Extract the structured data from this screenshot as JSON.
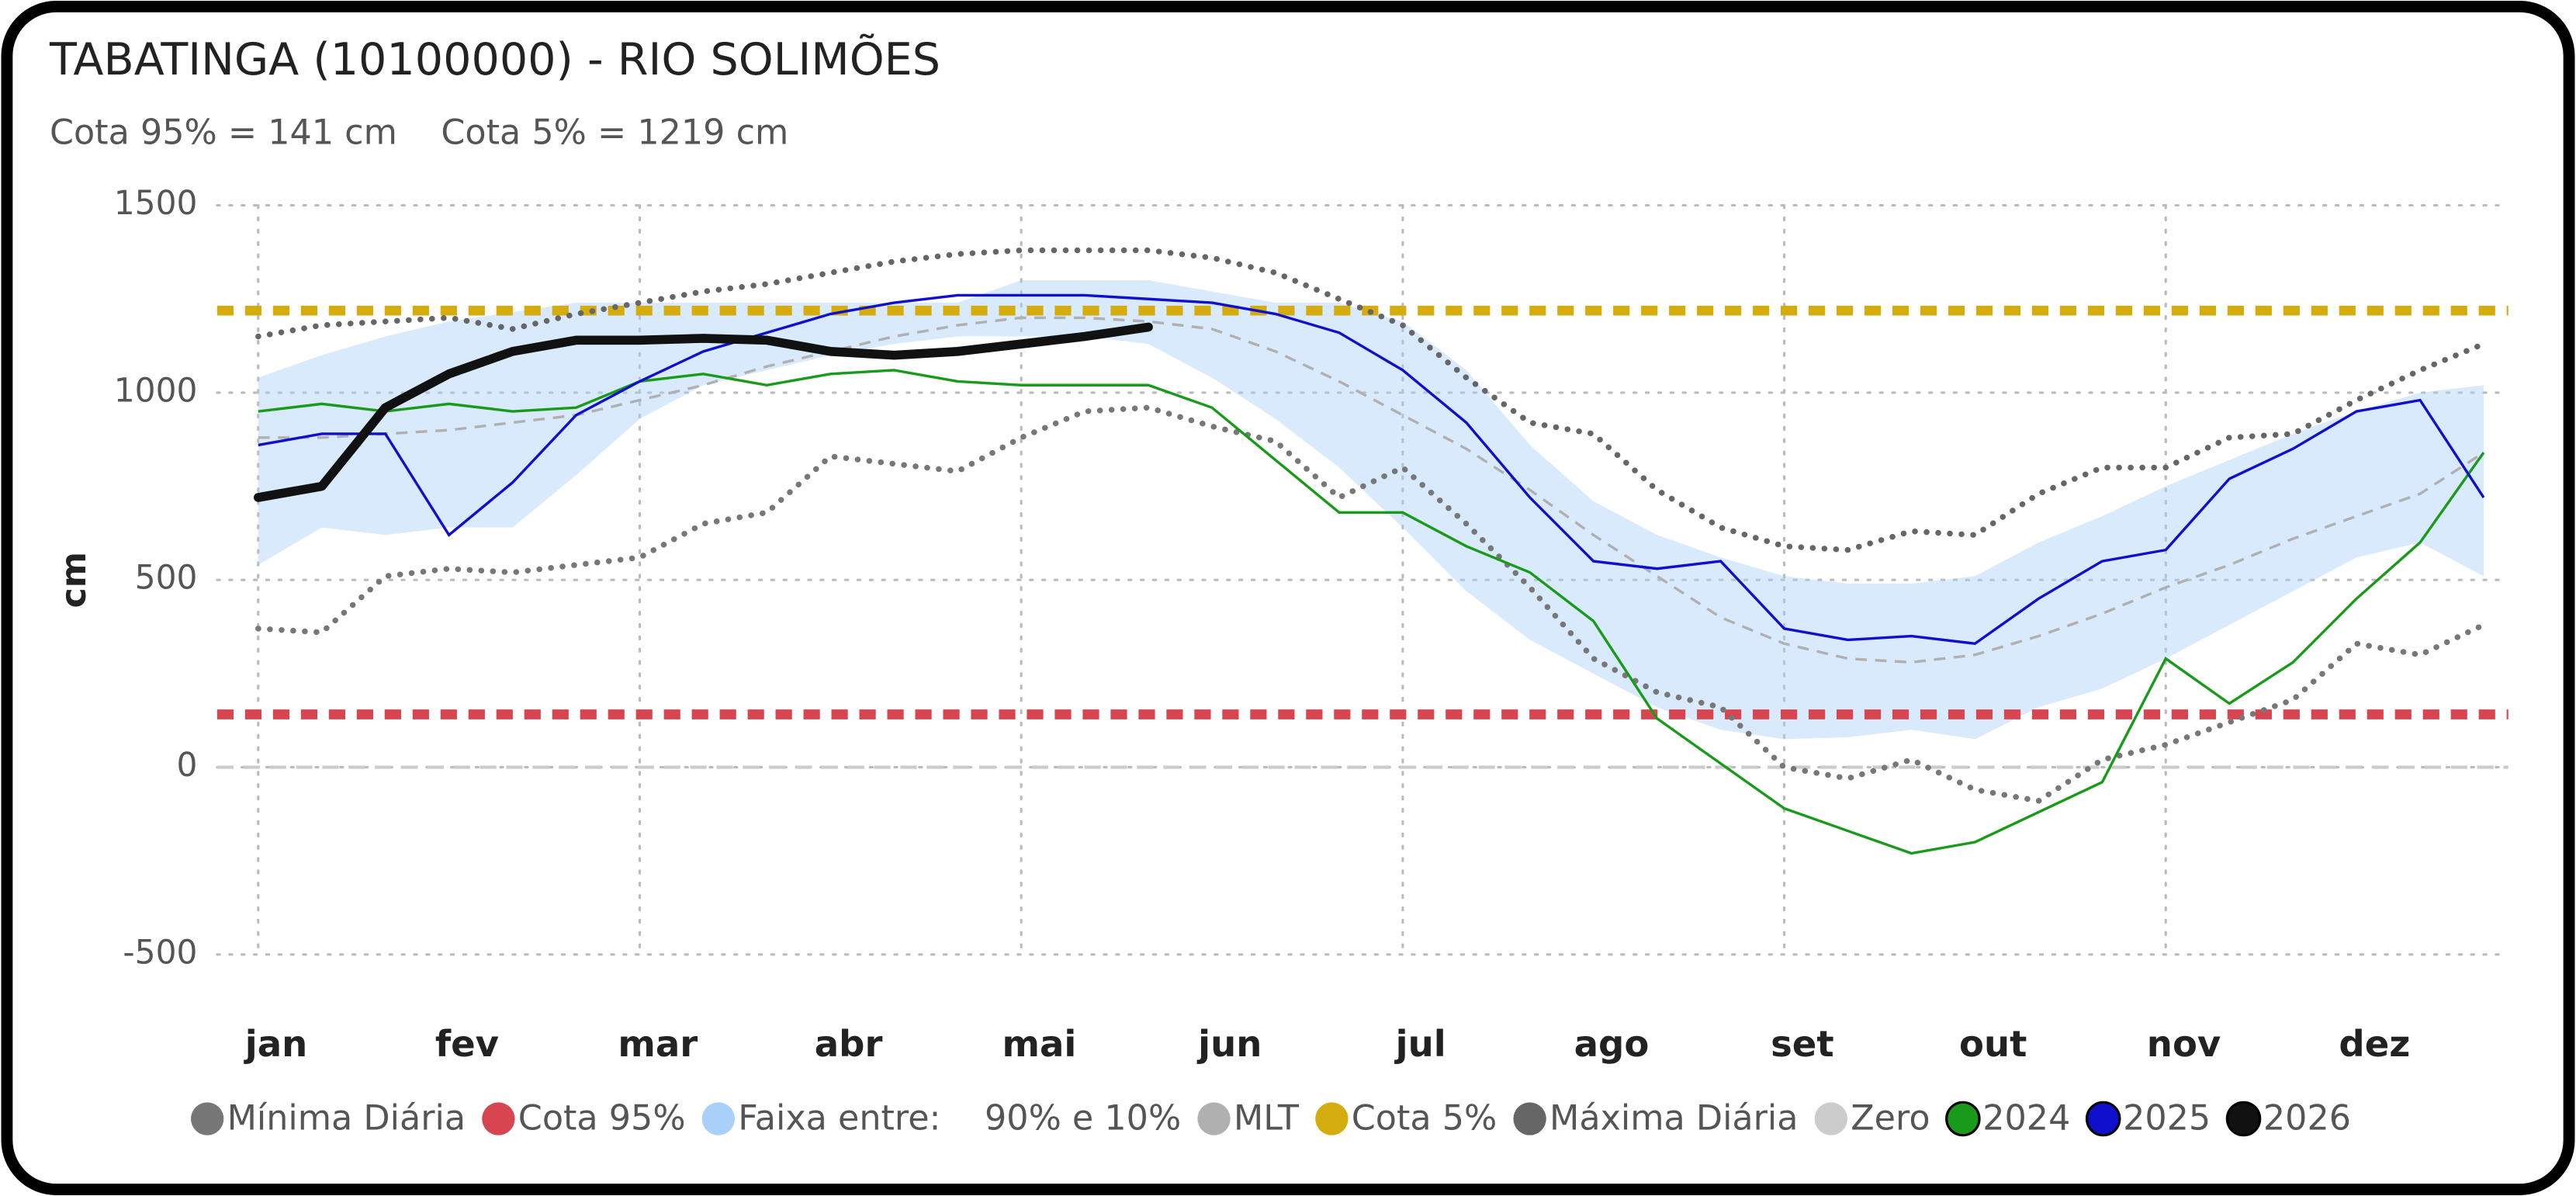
{
  "chart_data": {
    "type": "line",
    "title": "TABATINGA (10100000) - RIO SOLIMÕES",
    "subtitle": "Cota 95% = 141 cm    Cota 5% = 1219 cm",
    "y_label": "cm",
    "ylim": [
      -500,
      1500
    ],
    "yticks": [
      -500,
      0,
      500,
      1000,
      1500
    ],
    "grid": true,
    "legend": "bottom",
    "categories": [
      "jan",
      null,
      null,
      "fev",
      null,
      null,
      "mar",
      null,
      null,
      "abr",
      null,
      null,
      "mai",
      null,
      null,
      "jun",
      null,
      null,
      "jul",
      null,
      null,
      "ago",
      null,
      null,
      "set",
      null,
      null,
      "out",
      null,
      null,
      "nov",
      null,
      null,
      "dez",
      null,
      null
    ],
    "series": [
      {
        "name": "Mínima Diária",
        "color": "#777777",
        "kind": "line",
        "style": "dotted",
        "values": [
          370,
          360,
          510,
          530,
          520,
          540,
          560,
          650,
          680,
          830,
          810,
          790,
          880,
          950,
          960,
          910,
          870,
          720,
          800,
          650,
          480,
          290,
          200,
          160,
          0,
          -30,
          20,
          -60,
          -90,
          20,
          60,
          120,
          180,
          330,
          300,
          380
        ]
      },
      {
        "name": "Cota 95%",
        "color": "#d64550",
        "kind": "hline",
        "value": 141
      },
      {
        "name": "Faixa entre:    90% e 10%",
        "color": "#a8d0f8",
        "kind": "band",
        "upper": [
          1040,
          1100,
          1150,
          1190,
          1215,
          1240,
          1240,
          1240,
          1240,
          1240,
          1240,
          1240,
          1300,
          1300,
          1300,
          1270,
          1240,
          1240,
          1190,
          1060,
          860,
          710,
          620,
          560,
          510,
          490,
          490,
          510,
          600,
          670,
          750,
          820,
          890,
          950,
          1000,
          1020
        ],
        "lower": [
          540,
          640,
          620,
          640,
          640,
          780,
          930,
          1020,
          1060,
          1100,
          1130,
          1150,
          1150,
          1150,
          1130,
          1040,
          930,
          800,
          640,
          470,
          340,
          250,
          160,
          100,
          75,
          80,
          100,
          75,
          160,
          210,
          290,
          380,
          470,
          560,
          600,
          510
        ]
      },
      {
        "name": "MLT",
        "color": "#b0b0b0",
        "kind": "line",
        "style": "dashed",
        "values": [
          880,
          880,
          890,
          900,
          920,
          940,
          980,
          1020,
          1070,
          1110,
          1150,
          1180,
          1200,
          1200,
          1190,
          1170,
          1110,
          1030,
          940,
          850,
          740,
          620,
          510,
          400,
          330,
          290,
          280,
          300,
          350,
          410,
          480,
          540,
          610,
          670,
          730,
          840
        ]
      },
      {
        "name": "Cota 5%",
        "color": "#d4ac0d",
        "kind": "hline",
        "value": 1219
      },
      {
        "name": "Máxima Diária",
        "color": "#666666",
        "kind": "line",
        "style": "dotted",
        "values": [
          1150,
          1180,
          1190,
          1200,
          1170,
          1210,
          1240,
          1270,
          1290,
          1320,
          1350,
          1370,
          1380,
          1380,
          1380,
          1360,
          1320,
          1250,
          1180,
          1040,
          920,
          890,
          740,
          640,
          590,
          580,
          630,
          620,
          730,
          800,
          800,
          880,
          890,
          980,
          1060,
          1130
        ]
      },
      {
        "name": "Zero",
        "color": "#cccccc",
        "kind": "hline",
        "value": 0
      },
      {
        "name": "2024",
        "color": "#1a9a1a",
        "kind": "line",
        "style": "solid",
        "values": [
          950,
          970,
          950,
          970,
          950,
          960,
          1030,
          1050,
          1020,
          1050,
          1060,
          1030,
          1020,
          1020,
          1020,
          960,
          820,
          680,
          680,
          590,
          520,
          390,
          130,
          10,
          -110,
          -170,
          -230,
          -200,
          -120,
          -40,
          290,
          170,
          280,
          450,
          600,
          840
        ]
      },
      {
        "name": "2025",
        "color": "#1010cc",
        "kind": "line",
        "style": "solid",
        "values": [
          860,
          890,
          890,
          620,
          760,
          940,
          1030,
          1110,
          1160,
          1210,
          1240,
          1260,
          1260,
          1260,
          1250,
          1240,
          1210,
          1160,
          1060,
          920,
          720,
          550,
          530,
          550,
          370,
          340,
          350,
          330,
          450,
          550,
          580,
          770,
          850,
          950,
          980,
          720
        ]
      },
      {
        "name": "2026",
        "color": "#111111",
        "kind": "line",
        "style": "thick",
        "values": [
          720,
          750,
          960,
          1050,
          1110,
          1140,
          1140,
          1145,
          1140,
          1110,
          1100,
          1110,
          1130,
          1150,
          1175,
          null,
          null,
          null,
          null,
          null,
          null,
          null,
          null,
          null,
          null,
          null,
          null,
          null,
          null,
          null,
          null,
          null,
          null,
          null,
          null,
          null
        ]
      }
    ]
  }
}
